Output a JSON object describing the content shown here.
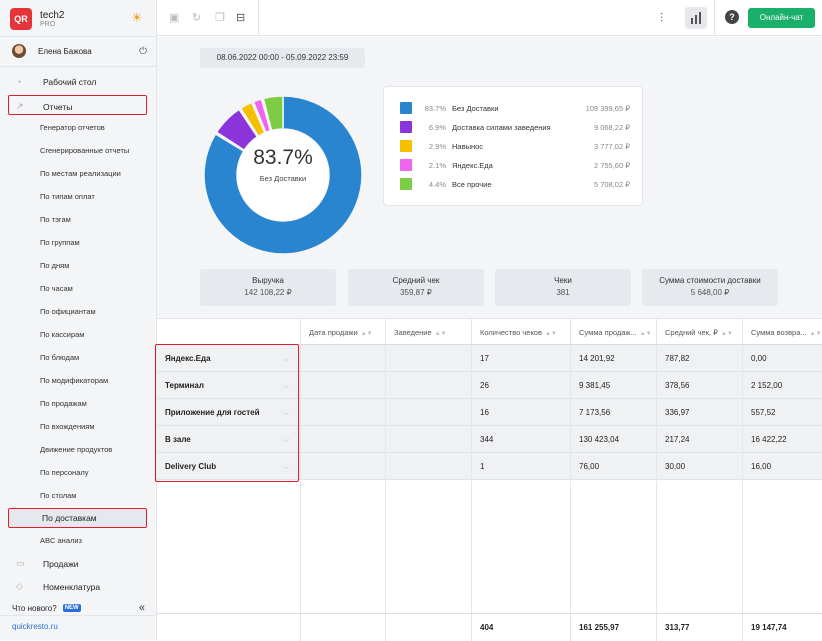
{
  "app": {
    "logo": "QR",
    "title": "tech2",
    "subtitle": "PRO"
  },
  "user": {
    "name": "Елена Бажова"
  },
  "sidebar": {
    "desktop": "Рабочий стол",
    "reports": "Отчеты",
    "sub_items": [
      "Генератор отчетов",
      "Сгенерированные отчеты",
      "По местам реализации",
      "По типам оплат",
      "По тэгам",
      "По группам",
      "По дням",
      "По часам",
      "По официантам",
      "По кассирам",
      "По блюдам",
      "По модификаторам",
      "По продажам",
      "По вхождениям",
      "Движение продуктов",
      "По персоналу",
      "По столам"
    ],
    "active_item": "По доставкам",
    "abc": "ABC анализ",
    "sales": "Продажи",
    "nomenclature": "Номенклатура",
    "whats_new": "Что нового?",
    "new_badge": "NEW",
    "site": "quickresto.ru"
  },
  "toolbar": {
    "chat_button": "Онлайн-чат",
    "help": "?"
  },
  "date_range": "08.06.2022 00:00 - 05.09.2022 23:59",
  "donut": {
    "center_value": "83.7%",
    "center_label": "Без Доставки",
    "segments": [
      {
        "name": "Без Доставки",
        "percent": 83.7,
        "pct_label": "83.7%",
        "value": "109 399,65 ₽",
        "color": "#2a85d0"
      },
      {
        "name": "Доставка силами заведения",
        "percent": 6.9,
        "pct_label": "6.9%",
        "value": "9 068,22 ₽",
        "color": "#8a34d9"
      },
      {
        "name": "Навынос",
        "percent": 2.9,
        "pct_label": "2.9%",
        "value": "3 777,02 ₽",
        "color": "#f5c000"
      },
      {
        "name": "Яндекс.Еда",
        "percent": 2.1,
        "pct_label": "2.1%",
        "value": "2 755,60 ₽",
        "color": "#ee66ee"
      },
      {
        "name": "Все прочие",
        "percent": 4.4,
        "pct_label": "4.4%",
        "value": "5 708,02 ₽",
        "color": "#7ccc44"
      }
    ]
  },
  "summary": [
    {
      "title": "Выручка",
      "value": "142 108,22 ₽"
    },
    {
      "title": "Средний чек",
      "value": "359,87 ₽"
    },
    {
      "title": "Чеки",
      "value": "381"
    },
    {
      "title": "Сумма стоимости доставки",
      "value": "5 648,00 ₽"
    }
  ],
  "table": {
    "columns": [
      "",
      "Дата продажи",
      "Заведение",
      "Количество чеков",
      "Сумма продаж...",
      "Средний чек, ₽",
      "Сумма возвра..."
    ],
    "rows": [
      {
        "name": "Яндекс.Еда",
        "date": "",
        "venue": "",
        "checks": "17",
        "sales": "14 201,92",
        "avg": "787,82",
        "refunds": "0,00"
      },
      {
        "name": "Терминал",
        "date": "",
        "venue": "",
        "checks": "26",
        "sales": "9 381,45",
        "avg": "378,56",
        "refunds": "2 152,00"
      },
      {
        "name": "Приложение для гостей",
        "date": "",
        "venue": "",
        "checks": "16",
        "sales": "7 173,56",
        "avg": "336,97",
        "refunds": "557,52"
      },
      {
        "name": "В зале",
        "date": "",
        "venue": "",
        "checks": "344",
        "sales": "130 423,04",
        "avg": "217,24",
        "refunds": "16 422,22"
      },
      {
        "name": "Delivery Club",
        "date": "",
        "venue": "",
        "checks": "1",
        "sales": "76,00",
        "avg": "30,00",
        "refunds": "16,00"
      }
    ],
    "totals": {
      "checks": "404",
      "sales": "161 255,97",
      "avg": "313,77",
      "refunds": "19 147,74"
    }
  }
}
